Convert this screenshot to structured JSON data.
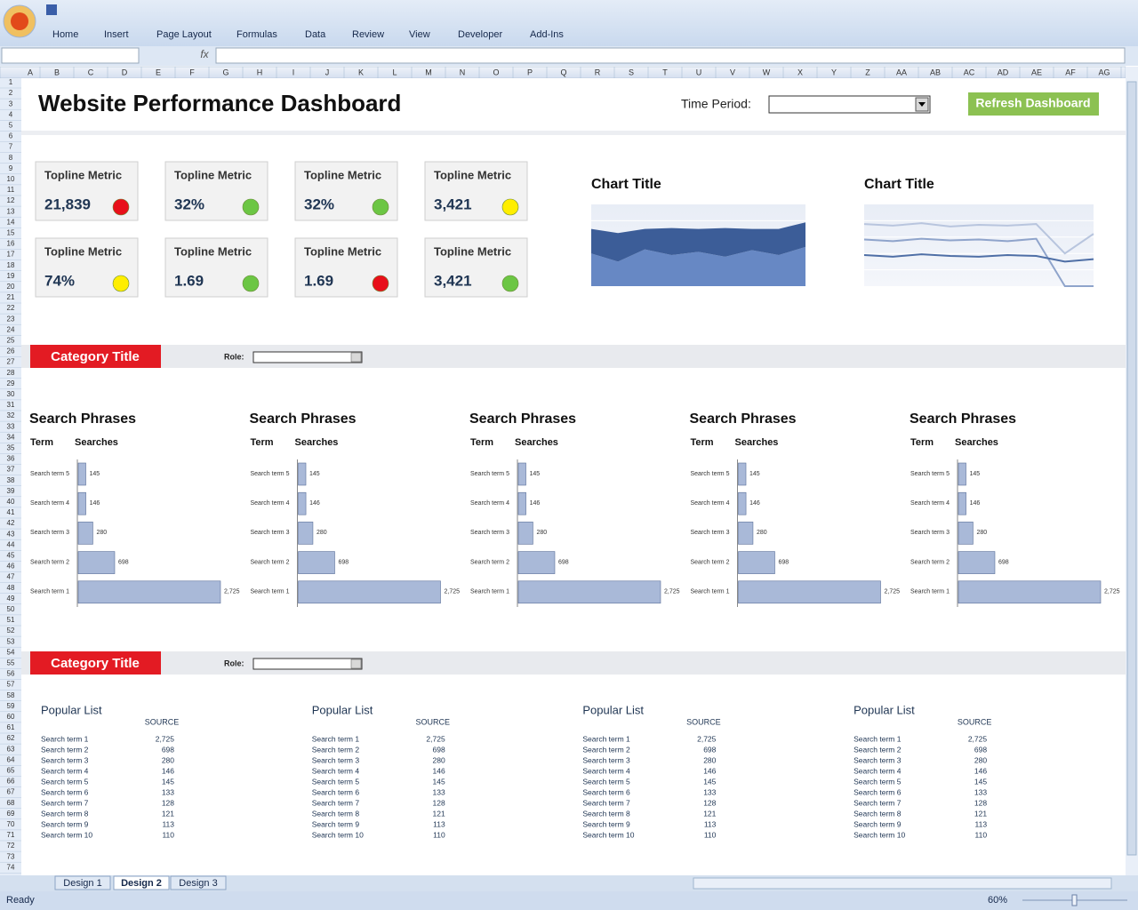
{
  "ribbon": {
    "tabs": [
      "Home",
      "Insert",
      "Page Layout",
      "Formulas",
      "Data",
      "Review",
      "View",
      "Developer",
      "Add-Ins"
    ]
  },
  "formula_bar": {
    "fx": "fx"
  },
  "sheet": {
    "columns": [
      "A",
      "B",
      "C",
      "D",
      "E",
      "F",
      "G",
      "H",
      "I",
      "J",
      "K",
      "L",
      "M",
      "N",
      "O",
      "P",
      "Q",
      "R",
      "S",
      "T",
      "U",
      "V",
      "W",
      "X",
      "Y",
      "Z",
      "AA",
      "AB",
      "AC",
      "AD",
      "AE",
      "AF",
      "AG"
    ],
    "rows": [
      1,
      2,
      3,
      4,
      5,
      6,
      7,
      8,
      9,
      10,
      11,
      12,
      13,
      14,
      15,
      16,
      17,
      18,
      19,
      20,
      21,
      22,
      23,
      24,
      25,
      26,
      27,
      28,
      29,
      30,
      31,
      32,
      33,
      34,
      35,
      36,
      37,
      38,
      39,
      40,
      41,
      42,
      43,
      44,
      45,
      46,
      47,
      48,
      49,
      50,
      51,
      52,
      53,
      54,
      55,
      56,
      57,
      58,
      59,
      60,
      61,
      62,
      63,
      64,
      65,
      66,
      67,
      68,
      69,
      70,
      71,
      72,
      73,
      74
    ],
    "tabs": [
      "Design 1",
      "Design 2",
      "Design 3"
    ]
  },
  "status_bar": {
    "status": "Ready",
    "zoom": "60%"
  },
  "dashboard": {
    "title": "Website Performance Dashboard",
    "time_period_label": "Time Period:",
    "refresh_button": "Refresh Dashboard"
  },
  "metrics": [
    {
      "label": "Topline Metric",
      "value": "21,839",
      "status_color": "#e8101a"
    },
    {
      "label": "Topline Metric",
      "value": "32%",
      "status_color": "#6cc644"
    },
    {
      "label": "Topline Metric",
      "value": "32%",
      "status_color": "#6cc644"
    },
    {
      "label": "Topline Metric",
      "value": "3,421",
      "status_color": "#ffee00"
    },
    {
      "label": "Topline Metric",
      "value": "74%",
      "status_color": "#ffee00"
    },
    {
      "label": "Topline Metric",
      "value": "1.69",
      "status_color": "#6cc644"
    },
    {
      "label": "Topline Metric",
      "value": "1.69",
      "status_color": "#e8101a"
    },
    {
      "label": "Topline Metric",
      "value": "3,421",
      "status_color": "#6cc644"
    }
  ],
  "charts": [
    {
      "type": "area",
      "title": "Chart Title",
      "ylim": [
        0,
        100
      ],
      "series": [
        {
          "color": "#6788c4",
          "values": [
            40,
            30,
            45,
            38,
            42,
            36,
            44,
            38,
            48
          ]
        },
        {
          "color": "#3c5d98",
          "values": [
            30,
            35,
            25,
            33,
            28,
            35,
            26,
            32,
            30
          ]
        }
      ]
    },
    {
      "type": "line",
      "title": "Chart Title",
      "ylim": [
        0,
        100
      ],
      "series": [
        {
          "color": "#b8c5de",
          "values": [
            76,
            74,
            77,
            73,
            75,
            74,
            76,
            40,
            64
          ]
        },
        {
          "color": "#8fa4cb",
          "values": [
            57,
            55,
            58,
            56,
            57,
            55,
            58,
            0,
            0
          ]
        },
        {
          "color": "#4f6fa6",
          "values": [
            38,
            36,
            39,
            37,
            36,
            38,
            37,
            30,
            33
          ]
        }
      ]
    }
  ],
  "categories": [
    {
      "title": "Category Title",
      "role_label": "Role:"
    },
    {
      "title": "Category Title",
      "role_label": "Role:"
    }
  ],
  "search_charts": [
    {
      "type": "bar",
      "title": "Search Phrases",
      "term_header": "Term",
      "searches_header": "Searches",
      "color": "#a9b9d8",
      "categories": [
        "Search term 5",
        "Search term 4",
        "Search term 3",
        "Search term 2",
        "Search term 1"
      ],
      "values": [
        145,
        146,
        280,
        698,
        2725
      ],
      "value_labels": [
        "145",
        "146",
        "280",
        "698",
        "2,725"
      ]
    },
    {
      "type": "bar",
      "title": "Search Phrases",
      "term_header": "Term",
      "searches_header": "Searches",
      "color": "#a9b9d8",
      "categories": [
        "Search term 5",
        "Search term 4",
        "Search term 3",
        "Search term 2",
        "Search term 1"
      ],
      "values": [
        145,
        146,
        280,
        698,
        2725
      ],
      "value_labels": [
        "145",
        "146",
        "280",
        "698",
        "2,725"
      ]
    },
    {
      "type": "bar",
      "title": "Search Phrases",
      "term_header": "Term",
      "searches_header": "Searches",
      "color": "#a9b9d8",
      "categories": [
        "Search term 5",
        "Search term 4",
        "Search term 3",
        "Search term 2",
        "Search term 1"
      ],
      "values": [
        145,
        146,
        280,
        698,
        2725
      ],
      "value_labels": [
        "145",
        "146",
        "280",
        "698",
        "2,725"
      ]
    },
    {
      "type": "bar",
      "title": "Search Phrases",
      "term_header": "Term",
      "searches_header": "Searches",
      "color": "#a9b9d8",
      "categories": [
        "Search term 5",
        "Search term 4",
        "Search term 3",
        "Search term 2",
        "Search term 1"
      ],
      "values": [
        145,
        146,
        280,
        698,
        2725
      ],
      "value_labels": [
        "145",
        "146",
        "280",
        "698",
        "2,725"
      ]
    },
    {
      "type": "bar",
      "title": "Search Phrases",
      "term_header": "Term",
      "searches_header": "Searches",
      "color": "#a9b9d8",
      "categories": [
        "Search term 5",
        "Search term 4",
        "Search term 3",
        "Search term 2",
        "Search term 1"
      ],
      "values": [
        145,
        146,
        280,
        698,
        2725
      ],
      "value_labels": [
        "145",
        "146",
        "280",
        "698",
        "2,725"
      ]
    }
  ],
  "popular_lists": [
    {
      "title": "Popular List",
      "header": "SOURCE",
      "rows": [
        [
          "Search term 1",
          "2,725"
        ],
        [
          "Search term 2",
          "698"
        ],
        [
          "Search term 3",
          "280"
        ],
        [
          "Search term 4",
          "146"
        ],
        [
          "Search term 5",
          "145"
        ],
        [
          "Search term 6",
          "133"
        ],
        [
          "Search term 7",
          "128"
        ],
        [
          "Search term 8",
          "121"
        ],
        [
          "Search term 9",
          "113"
        ],
        [
          "Search term 10",
          "110"
        ]
      ]
    },
    {
      "title": "Popular List",
      "header": "SOURCE",
      "rows": [
        [
          "Search term 1",
          "2,725"
        ],
        [
          "Search term 2",
          "698"
        ],
        [
          "Search term 3",
          "280"
        ],
        [
          "Search term 4",
          "146"
        ],
        [
          "Search term 5",
          "145"
        ],
        [
          "Search term 6",
          "133"
        ],
        [
          "Search term 7",
          "128"
        ],
        [
          "Search term 8",
          "121"
        ],
        [
          "Search term 9",
          "113"
        ],
        [
          "Search term 10",
          "110"
        ]
      ]
    },
    {
      "title": "Popular List",
      "header": "SOURCE",
      "rows": [
        [
          "Search term 1",
          "2,725"
        ],
        [
          "Search term 2",
          "698"
        ],
        [
          "Search term 3",
          "280"
        ],
        [
          "Search term 4",
          "146"
        ],
        [
          "Search term 5",
          "145"
        ],
        [
          "Search term 6",
          "133"
        ],
        [
          "Search term 7",
          "128"
        ],
        [
          "Search term 8",
          "121"
        ],
        [
          "Search term 9",
          "113"
        ],
        [
          "Search term 10",
          "110"
        ]
      ]
    },
    {
      "title": "Popular List",
      "header": "SOURCE",
      "rows": [
        [
          "Search term 1",
          "2,725"
        ],
        [
          "Search term 2",
          "698"
        ],
        [
          "Search term 3",
          "280"
        ],
        [
          "Search term 4",
          "146"
        ],
        [
          "Search term 5",
          "145"
        ],
        [
          "Search term 6",
          "133"
        ],
        [
          "Search term 7",
          "128"
        ],
        [
          "Search term 8",
          "121"
        ],
        [
          "Search term 9",
          "113"
        ],
        [
          "Search term 10",
          "110"
        ]
      ]
    }
  ]
}
